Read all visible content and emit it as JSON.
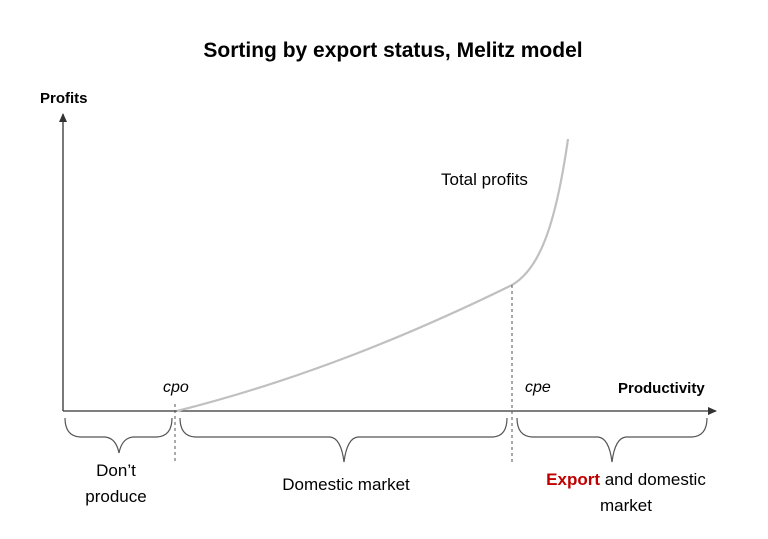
{
  "title": "Sorting by export status, Melitz model",
  "axes": {
    "y_label": "Profits",
    "x_label": "Productivity"
  },
  "cutoffs": {
    "cpo": "cpo",
    "cpe": "cpe"
  },
  "curve": {
    "label": "Total profits",
    "color": "#c0c0c0"
  },
  "regions": {
    "dont_produce": {
      "line1": "Don’t",
      "line2": "produce"
    },
    "domestic": {
      "label": "Domestic market"
    },
    "export": {
      "highlight": "Export",
      "rest_line1": " and domestic",
      "line2": "market",
      "highlight_color": "#c00000"
    }
  }
}
